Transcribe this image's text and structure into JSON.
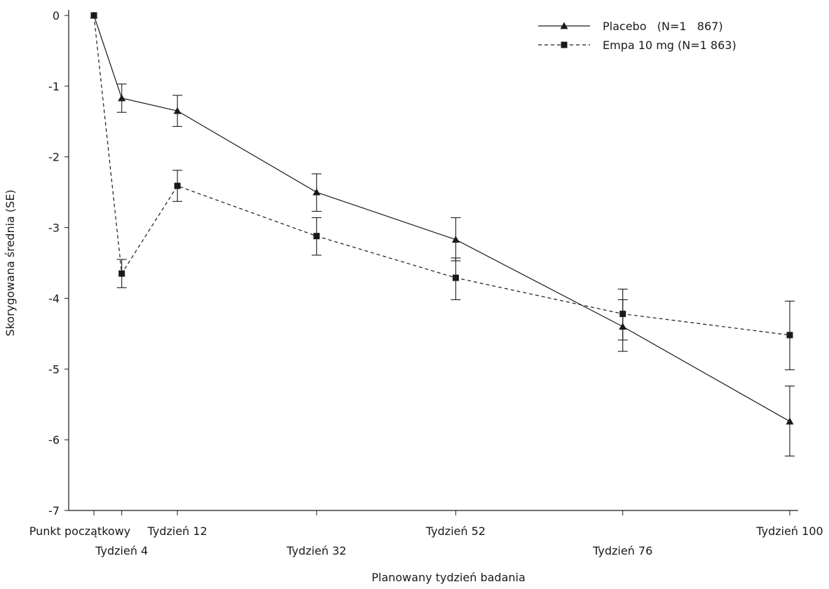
{
  "chart_data": {
    "type": "line",
    "xlabel": "Planowany tydzień badania",
    "ylabel": "Skorygowana średnia (SE)",
    "ylim": [
      -7,
      0
    ],
    "yticks": [
      0,
      -1,
      -2,
      -3,
      -4,
      -5,
      -6,
      -7
    ],
    "xlim": [
      -3,
      102
    ],
    "x_ticks": [
      {
        "value": 0,
        "label": "Punkt początkowy",
        "row": 1
      },
      {
        "value": 4,
        "label": "Tydzień 4",
        "row": 2
      },
      {
        "value": 12,
        "label": "Tydzień 12",
        "row": 1
      },
      {
        "value": 32,
        "label": "Tydzień 32",
        "row": 2
      },
      {
        "value": 52,
        "label": "Tydzień 52",
        "row": 1
      },
      {
        "value": 76,
        "label": "Tydzień 76",
        "row": 2
      },
      {
        "value": 100,
        "label": "Tydzień 100",
        "row": 1
      }
    ],
    "legend_position": "top-right",
    "series": [
      {
        "name": "Placebo   (N=1   867)",
        "marker": "triangle",
        "line_style": "solid",
        "color": "#1a1a1a",
        "points": [
          {
            "x": 0,
            "y": 0.0,
            "lower": null,
            "upper": null
          },
          {
            "x": 4,
            "y": -1.17,
            "lower": -1.37,
            "upper": -0.97
          },
          {
            "x": 12,
            "y": -1.35,
            "lower": -1.57,
            "upper": -1.13
          },
          {
            "x": 32,
            "y": -2.5,
            "lower": -2.77,
            "upper": -2.24
          },
          {
            "x": 52,
            "y": -3.17,
            "lower": -3.47,
            "upper": -2.86
          },
          {
            "x": 76,
            "y": -4.4,
            "lower": -4.75,
            "upper": -4.02
          },
          {
            "x": 100,
            "y": -5.74,
            "lower": -6.23,
            "upper": -5.24
          }
        ]
      },
      {
        "name": "Empa 10 mg (N=1 863)",
        "marker": "square",
        "line_style": "dashed",
        "color": "#1a1a1a",
        "points": [
          {
            "x": 0,
            "y": 0.0,
            "lower": null,
            "upper": null
          },
          {
            "x": 4,
            "y": -3.65,
            "lower": -3.85,
            "upper": -3.45
          },
          {
            "x": 12,
            "y": -2.41,
            "lower": -2.63,
            "upper": -2.19
          },
          {
            "x": 32,
            "y": -3.12,
            "lower": -3.39,
            "upper": -2.86
          },
          {
            "x": 52,
            "y": -3.71,
            "lower": -4.02,
            "upper": -3.43
          },
          {
            "x": 76,
            "y": -4.22,
            "lower": -4.59,
            "upper": -3.87
          },
          {
            "x": 100,
            "y": -4.52,
            "lower": -5.01,
            "upper": -4.04
          }
        ]
      }
    ]
  }
}
